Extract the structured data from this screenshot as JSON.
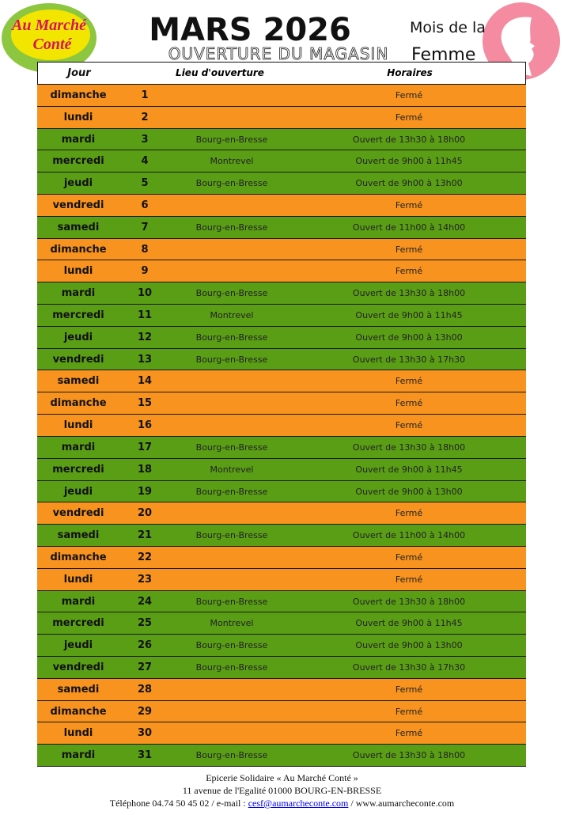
{
  "header": {
    "logo": [
      "Au Marché",
      "Conté"
    ],
    "title": "MARS 2026",
    "subtitle": "OUVERTURE DU MAGASIN",
    "theme": [
      "Mois de la",
      "Femme"
    ]
  },
  "table": {
    "columns": [
      "Jour",
      "Lieu d'ouverture",
      "Horaires"
    ],
    "rows": [
      {
        "jour": "dimanche",
        "num": 1,
        "horaires": "Fermé"
      },
      {
        "jour": "lundi",
        "num": 2,
        "horaires": "Fermé"
      },
      {
        "jour": "mardi",
        "num": 3,
        "lieu": "Bourg-en-Bresse",
        "horaires": "Ouvert de 13h30 à 18h00"
      },
      {
        "jour": "mercredi",
        "num": 4,
        "lieu": "Montrevel",
        "horaires": "Ouvert de 9h00 à 11h45"
      },
      {
        "jour": "jeudi",
        "num": 5,
        "lieu": "Bourg-en-Bresse",
        "horaires": "Ouvert de 9h00 à 13h00"
      },
      {
        "jour": "vendredi",
        "num": 6,
        "horaires": "Fermé"
      },
      {
        "jour": "samedi",
        "num": 7,
        "lieu": "Bourg-en-Bresse",
        "horaires": "Ouvert de 11h00 à 14h00"
      },
      {
        "jour": "dimanche",
        "num": 8,
        "horaires": "Fermé"
      },
      {
        "jour": "lundi",
        "num": 9,
        "horaires": "Fermé"
      },
      {
        "jour": "mardi",
        "num": 10,
        "lieu": "Bourg-en-Bresse",
        "horaires": "Ouvert de 13h30 à 18h00"
      },
      {
        "jour": "mercredi",
        "num": 11,
        "lieu": "Montrevel",
        "horaires": "Ouvert de 9h00 à 11h45"
      },
      {
        "jour": "jeudi",
        "num": 12,
        "lieu": "Bourg-en-Bresse",
        "horaires": "Ouvert de 9h00 à 13h00"
      },
      {
        "jour": "vendredi",
        "num": 13,
        "lieu": "Bourg-en-Bresse",
        "horaires": "Ouvert de 13h30 à 17h30"
      },
      {
        "jour": "samedi",
        "num": 14,
        "horaires": "Fermé"
      },
      {
        "jour": "dimanche",
        "num": 15,
        "horaires": "Fermé"
      },
      {
        "jour": "lundi",
        "num": 16,
        "horaires": "Fermé"
      },
      {
        "jour": "mardi",
        "num": 17,
        "lieu": "Bourg-en-Bresse",
        "horaires": "Ouvert de 13h30 à 18h00"
      },
      {
        "jour": "mercredi",
        "num": 18,
        "lieu": "Montrevel",
        "horaires": "Ouvert de 9h00 à 11h45"
      },
      {
        "jour": "jeudi",
        "num": 19,
        "lieu": "Bourg-en-Bresse",
        "horaires": "Ouvert de 9h00 à 13h00"
      },
      {
        "jour": "vendredi",
        "num": 20,
        "horaires": "Fermé"
      },
      {
        "jour": "samedi",
        "num": 21,
        "lieu": "Bourg-en-Bresse",
        "horaires": "Ouvert de 11h00 à 14h00"
      },
      {
        "jour": "dimanche",
        "num": 22,
        "horaires": "Fermé"
      },
      {
        "jour": "lundi",
        "num": 23,
        "horaires": "Fermé"
      },
      {
        "jour": "mardi",
        "num": 24,
        "lieu": "Bourg-en-Bresse",
        "horaires": "Ouvert de 13h30 à 18h00"
      },
      {
        "jour": "mercredi",
        "num": 25,
        "lieu": "Montrevel",
        "horaires": "Ouvert de 9h00 à 11h45"
      },
      {
        "jour": "jeudi",
        "num": 26,
        "lieu": "Bourg-en-Bresse",
        "horaires": "Ouvert de 9h00 à 13h00"
      },
      {
        "jour": "vendredi",
        "num": 27,
        "lieu": "Bourg-en-Bresse",
        "horaires": "Ouvert de 13h30 à 17h30"
      },
      {
        "jour": "samedi",
        "num": 28,
        "horaires": "Fermé"
      },
      {
        "jour": "dimanche",
        "num": 29,
        "horaires": "Fermé"
      },
      {
        "jour": "lundi",
        "num": 30,
        "horaires": "Fermé"
      },
      {
        "jour": "mardi",
        "num": 31,
        "lieu": "Bourg-en-Bresse",
        "horaires": "Ouvert de 13h30 à 18h00"
      }
    ]
  },
  "footer": {
    "lines": [
      "Epicerie  Solidaire « Au Marché Conté »",
      "11  avenue de l'Egalité    01000  BOURG-EN-BRESSE"
    ],
    "contact": [
      "Téléphone 04.74  50 45 02  /  e-mail  : ",
      "cesf@aumarcheconte.com",
      "  /  www.aumarcheconte.com"
    ]
  }
}
